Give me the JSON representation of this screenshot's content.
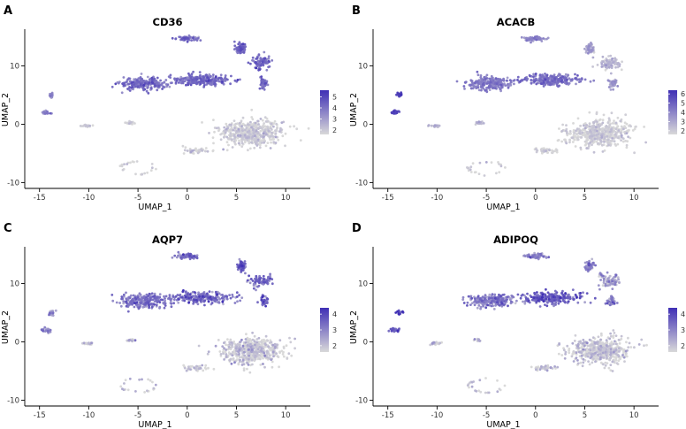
{
  "figure": {
    "axis_label_x": "UMAP_1",
    "axis_label_y": "UMAP_2",
    "colors": {
      "low": "#d9d9d9",
      "high": "#3f2fb5",
      "axis": "#000000"
    }
  },
  "chart_data": [
    {
      "panel": "A",
      "type": "scatter",
      "title": "CD36",
      "xlabel": "UMAP_1",
      "ylabel": "UMAP_2",
      "xlim": [
        -16.5,
        12.5
      ],
      "ylim": [
        -11,
        16
      ],
      "xticks": [
        -15,
        -10,
        -5,
        0,
        5,
        10
      ],
      "yticks": [
        -10,
        0,
        10
      ],
      "legend_ticks": [
        2,
        3,
        4,
        5
      ],
      "color_range": [
        1.6,
        5.6
      ],
      "clusters": [
        {
          "name": "top",
          "cx": 0.0,
          "cy": 14.7,
          "sx": 1.0,
          "sy": 0.35,
          "n": 70,
          "expr": 4.0
        },
        {
          "name": "band-left",
          "cx": -4.5,
          "cy": 7.0,
          "sx": 2.2,
          "sy": 1.0,
          "n": 220,
          "expr": 3.9
        },
        {
          "name": "band-right",
          "cx": 1.5,
          "cy": 7.6,
          "sx": 2.8,
          "sy": 0.9,
          "n": 240,
          "expr": 4.0
        },
        {
          "name": "right-a",
          "cx": 5.5,
          "cy": 13.0,
          "sx": 0.4,
          "sy": 0.8,
          "n": 60,
          "expr": 4.2
        },
        {
          "name": "right-b",
          "cx": 7.5,
          "cy": 10.5,
          "sx": 1.0,
          "sy": 1.0,
          "n": 80,
          "expr": 4.2
        },
        {
          "name": "right-c",
          "cx": 7.8,
          "cy": 7.0,
          "sx": 0.4,
          "sy": 0.8,
          "n": 40,
          "expr": 4.0
        },
        {
          "name": "left-a",
          "cx": -13.8,
          "cy": 5.0,
          "sx": 0.25,
          "sy": 0.4,
          "n": 20,
          "expr": 3.2
        },
        {
          "name": "left-b",
          "cx": -14.3,
          "cy": 2.0,
          "sx": 0.5,
          "sy": 0.3,
          "n": 25,
          "expr": 3.4
        },
        {
          "name": "small-1",
          "cx": -10.2,
          "cy": -0.3,
          "sx": 0.6,
          "sy": 0.2,
          "n": 18,
          "expr": 1.8
        },
        {
          "name": "small-2",
          "cx": -5.8,
          "cy": 0.3,
          "sx": 0.4,
          "sy": 0.25,
          "n": 14,
          "expr": 1.8
        },
        {
          "name": "big-gray",
          "cx": 6.5,
          "cy": -1.5,
          "sx": 2.8,
          "sy": 2.0,
          "n": 520,
          "expr": 1.7
        },
        {
          "name": "gray-left",
          "cx": 1.0,
          "cy": -4.5,
          "sx": 1.2,
          "sy": 0.4,
          "n": 40,
          "expr": 1.7
        },
        {
          "name": "sparse-ring",
          "cx": -5.0,
          "cy": -7.5,
          "sx": 1.8,
          "sy": 1.2,
          "n": 22,
          "expr": 1.7
        }
      ]
    },
    {
      "panel": "B",
      "type": "scatter",
      "title": "ACACB",
      "xlabel": "UMAP_1",
      "ylabel": "UMAP_2",
      "xlim": [
        -16.5,
        12.5
      ],
      "ylim": [
        -11,
        16
      ],
      "xticks": [
        -15,
        -10,
        -5,
        0,
        5,
        10
      ],
      "yticks": [
        -10,
        0,
        10
      ],
      "legend_ticks": [
        2,
        3,
        4,
        5,
        6
      ],
      "color_range": [
        1.6,
        6.4
      ],
      "clusters": [
        {
          "name": "top",
          "cx": 0.0,
          "cy": 14.7,
          "sx": 1.0,
          "sy": 0.35,
          "n": 70,
          "expr": 3.6
        },
        {
          "name": "band-left",
          "cx": -4.5,
          "cy": 7.0,
          "sx": 2.2,
          "sy": 1.0,
          "n": 220,
          "expr": 4.0
        },
        {
          "name": "band-right",
          "cx": 1.5,
          "cy": 7.6,
          "sx": 2.8,
          "sy": 0.9,
          "n": 240,
          "expr": 4.4
        },
        {
          "name": "right-a",
          "cx": 5.5,
          "cy": 13.0,
          "sx": 0.4,
          "sy": 0.8,
          "n": 60,
          "expr": 3.0
        },
        {
          "name": "right-b",
          "cx": 7.5,
          "cy": 10.5,
          "sx": 1.0,
          "sy": 1.0,
          "n": 80,
          "expr": 2.4
        },
        {
          "name": "right-c",
          "cx": 7.8,
          "cy": 7.0,
          "sx": 0.4,
          "sy": 0.8,
          "n": 40,
          "expr": 3.2
        },
        {
          "name": "left-a",
          "cx": -13.8,
          "cy": 5.0,
          "sx": 0.25,
          "sy": 0.4,
          "n": 20,
          "expr": 5.6
        },
        {
          "name": "left-b",
          "cx": -14.3,
          "cy": 2.0,
          "sx": 0.5,
          "sy": 0.3,
          "n": 25,
          "expr": 5.4
        },
        {
          "name": "small-1",
          "cx": -10.2,
          "cy": -0.3,
          "sx": 0.6,
          "sy": 0.2,
          "n": 18,
          "expr": 2.6
        },
        {
          "name": "small-2",
          "cx": -5.8,
          "cy": 0.3,
          "sx": 0.4,
          "sy": 0.25,
          "n": 14,
          "expr": 2.6
        },
        {
          "name": "big-gray",
          "cx": 6.5,
          "cy": -1.5,
          "sx": 2.8,
          "sy": 2.0,
          "n": 520,
          "expr": 1.7
        },
        {
          "name": "gray-left",
          "cx": 1.0,
          "cy": -4.5,
          "sx": 1.2,
          "sy": 0.4,
          "n": 40,
          "expr": 1.7
        },
        {
          "name": "sparse-ring",
          "cx": -5.0,
          "cy": -7.5,
          "sx": 1.8,
          "sy": 1.2,
          "n": 22,
          "expr": 1.7
        }
      ]
    },
    {
      "panel": "C",
      "type": "scatter",
      "title": "AQP7",
      "xlabel": "UMAP_1",
      "ylabel": "UMAP_2",
      "xlim": [
        -16.5,
        12.5
      ],
      "ylim": [
        -11,
        16
      ],
      "xticks": [
        -15,
        -10,
        -5,
        0,
        5,
        10
      ],
      "yticks": [
        -10,
        0,
        10
      ],
      "legend_ticks": [
        2,
        3,
        4
      ],
      "color_range": [
        1.6,
        4.4
      ],
      "clusters": [
        {
          "name": "top",
          "cx": 0.0,
          "cy": 14.7,
          "sx": 1.0,
          "sy": 0.35,
          "n": 70,
          "expr": 3.2
        },
        {
          "name": "band-left",
          "cx": -4.5,
          "cy": 7.0,
          "sx": 2.2,
          "sy": 1.0,
          "n": 220,
          "expr": 3.2
        },
        {
          "name": "band-right",
          "cx": 1.5,
          "cy": 7.6,
          "sx": 2.8,
          "sy": 0.9,
          "n": 240,
          "expr": 3.2
        },
        {
          "name": "right-a",
          "cx": 5.5,
          "cy": 13.0,
          "sx": 0.4,
          "sy": 0.8,
          "n": 60,
          "expr": 3.4
        },
        {
          "name": "right-b",
          "cx": 7.5,
          "cy": 10.5,
          "sx": 1.0,
          "sy": 1.0,
          "n": 80,
          "expr": 3.3
        },
        {
          "name": "right-c",
          "cx": 7.8,
          "cy": 7.0,
          "sx": 0.4,
          "sy": 0.8,
          "n": 40,
          "expr": 3.3
        },
        {
          "name": "left-a",
          "cx": -13.8,
          "cy": 5.0,
          "sx": 0.25,
          "sy": 0.4,
          "n": 20,
          "expr": 2.8
        },
        {
          "name": "left-b",
          "cx": -14.3,
          "cy": 2.0,
          "sx": 0.5,
          "sy": 0.3,
          "n": 25,
          "expr": 2.8
        },
        {
          "name": "small-1",
          "cx": -10.2,
          "cy": -0.3,
          "sx": 0.6,
          "sy": 0.2,
          "n": 18,
          "expr": 1.8
        },
        {
          "name": "small-2",
          "cx": -5.8,
          "cy": 0.3,
          "sx": 0.4,
          "sy": 0.25,
          "n": 14,
          "expr": 1.8
        },
        {
          "name": "big-gray",
          "cx": 6.5,
          "cy": -1.5,
          "sx": 2.8,
          "sy": 2.0,
          "n": 520,
          "expr": 1.7
        },
        {
          "name": "gray-left",
          "cx": 1.0,
          "cy": -4.5,
          "sx": 1.2,
          "sy": 0.4,
          "n": 40,
          "expr": 1.7
        },
        {
          "name": "sparse-ring",
          "cx": -5.0,
          "cy": -7.5,
          "sx": 1.8,
          "sy": 1.2,
          "n": 22,
          "expr": 1.7
        }
      ]
    },
    {
      "panel": "D",
      "type": "scatter",
      "title": "ADIPOQ",
      "xlabel": "UMAP_1",
      "ylabel": "UMAP_2",
      "xlim": [
        -16.5,
        12.5
      ],
      "ylim": [
        -11,
        16
      ],
      "xticks": [
        -15,
        -10,
        -5,
        0,
        5,
        10
      ],
      "yticks": [
        -10,
        0,
        10
      ],
      "legend_ticks": [
        2,
        3,
        4
      ],
      "color_range": [
        1.6,
        4.4
      ],
      "clusters": [
        {
          "name": "top",
          "cx": 0.0,
          "cy": 14.7,
          "sx": 1.0,
          "sy": 0.35,
          "n": 70,
          "expr": 2.9
        },
        {
          "name": "band-left",
          "cx": -4.5,
          "cy": 7.0,
          "sx": 2.2,
          "sy": 1.0,
          "n": 220,
          "expr": 3.0
        },
        {
          "name": "band-right",
          "cx": 1.5,
          "cy": 7.6,
          "sx": 2.8,
          "sy": 0.9,
          "n": 240,
          "expr": 3.4
        },
        {
          "name": "right-a",
          "cx": 5.5,
          "cy": 13.0,
          "sx": 0.4,
          "sy": 0.8,
          "n": 60,
          "expr": 2.8
        },
        {
          "name": "right-b",
          "cx": 7.5,
          "cy": 10.5,
          "sx": 1.0,
          "sy": 1.0,
          "n": 80,
          "expr": 2.4
        },
        {
          "name": "right-c",
          "cx": 7.8,
          "cy": 7.0,
          "sx": 0.4,
          "sy": 0.8,
          "n": 40,
          "expr": 2.9
        },
        {
          "name": "left-a",
          "cx": -13.8,
          "cy": 5.0,
          "sx": 0.25,
          "sy": 0.4,
          "n": 20,
          "expr": 3.8
        },
        {
          "name": "left-b",
          "cx": -14.3,
          "cy": 2.0,
          "sx": 0.5,
          "sy": 0.3,
          "n": 25,
          "expr": 3.6
        },
        {
          "name": "small-1",
          "cx": -10.2,
          "cy": -0.3,
          "sx": 0.6,
          "sy": 0.2,
          "n": 18,
          "expr": 2.0
        },
        {
          "name": "small-2",
          "cx": -5.8,
          "cy": 0.3,
          "sx": 0.4,
          "sy": 0.25,
          "n": 14,
          "expr": 2.0
        },
        {
          "name": "big-gray",
          "cx": 6.5,
          "cy": -1.5,
          "sx": 2.8,
          "sy": 2.0,
          "n": 520,
          "expr": 1.7
        },
        {
          "name": "gray-left",
          "cx": 1.0,
          "cy": -4.5,
          "sx": 1.2,
          "sy": 0.4,
          "n": 40,
          "expr": 1.7
        },
        {
          "name": "sparse-ring",
          "cx": -5.0,
          "cy": -7.5,
          "sx": 1.8,
          "sy": 1.2,
          "n": 22,
          "expr": 1.7
        }
      ]
    }
  ]
}
